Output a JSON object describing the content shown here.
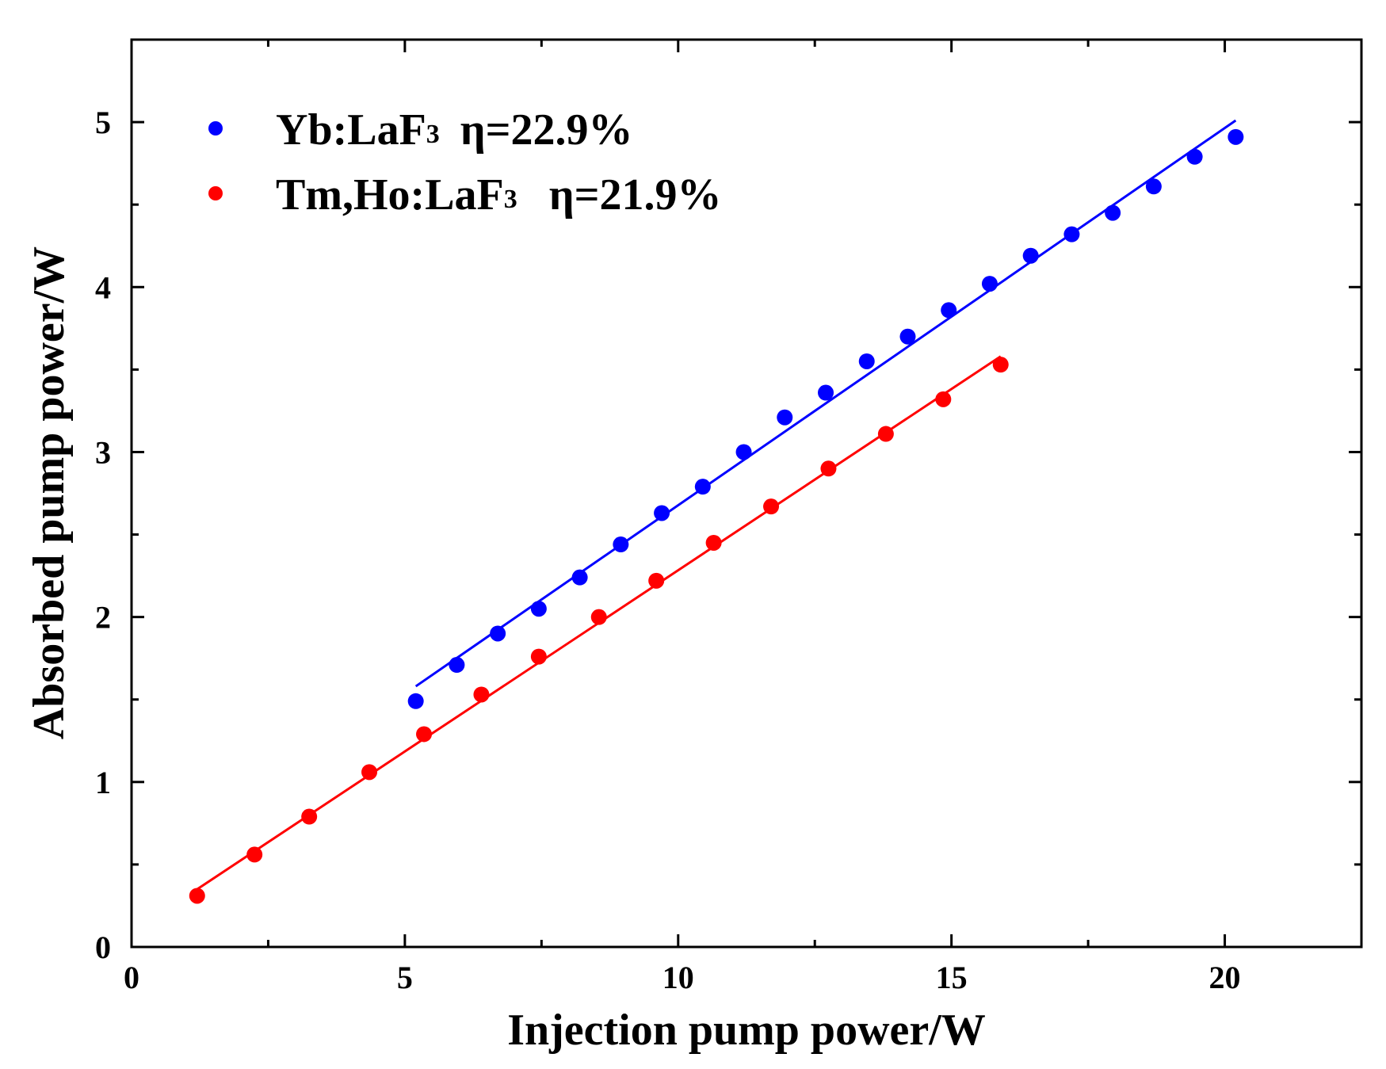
{
  "chart_data": {
    "type": "scatter",
    "xlabel": "Injection pump power/W",
    "ylabel": "Absorbed pump power/W",
    "xlim": [
      0,
      22.5
    ],
    "ylim": [
      0,
      5.5
    ],
    "x_ticks": [
      0,
      5,
      10,
      15,
      20
    ],
    "y_ticks": [
      0,
      1,
      2,
      3,
      4,
      5
    ],
    "legend_position": "top-left",
    "grid": false,
    "series": [
      {
        "name_main": "Yb:LaF",
        "name_sub": "3",
        "annotation": "η=22.9%",
        "color": "#0000ff",
        "x": [
          5.2,
          5.95,
          6.7,
          7.45,
          8.2,
          8.95,
          9.7,
          10.45,
          11.2,
          11.95,
          12.7,
          13.45,
          14.2,
          14.95,
          15.7,
          16.45,
          17.2,
          17.95,
          18.7,
          19.45,
          20.2
        ],
        "y": [
          1.49,
          1.71,
          1.9,
          2.05,
          2.24,
          2.44,
          2.63,
          2.79,
          3.0,
          3.21,
          3.36,
          3.55,
          3.7,
          3.86,
          4.02,
          4.19,
          4.32,
          4.45,
          4.61,
          4.79,
          4.91
        ],
        "fit": [
          [
            5.2,
            1.58
          ],
          [
            20.2,
            5.01
          ]
        ]
      },
      {
        "name_main": "Tm,Ho:LaF",
        "name_sub": "3",
        "annotation": "η=21.9%",
        "color": "#ff0000",
        "x": [
          1.2,
          2.25,
          3.25,
          4.35,
          5.35,
          6.4,
          7.45,
          8.55,
          9.6,
          10.65,
          11.7,
          12.75,
          13.8,
          14.85,
          15.9
        ],
        "y": [
          0.31,
          0.56,
          0.79,
          1.06,
          1.29,
          1.53,
          1.76,
          2.0,
          2.22,
          2.45,
          2.67,
          2.9,
          3.11,
          3.32,
          3.53
        ],
        "fit": [
          [
            1.2,
            0.35
          ],
          [
            15.9,
            3.58
          ]
        ]
      }
    ]
  }
}
